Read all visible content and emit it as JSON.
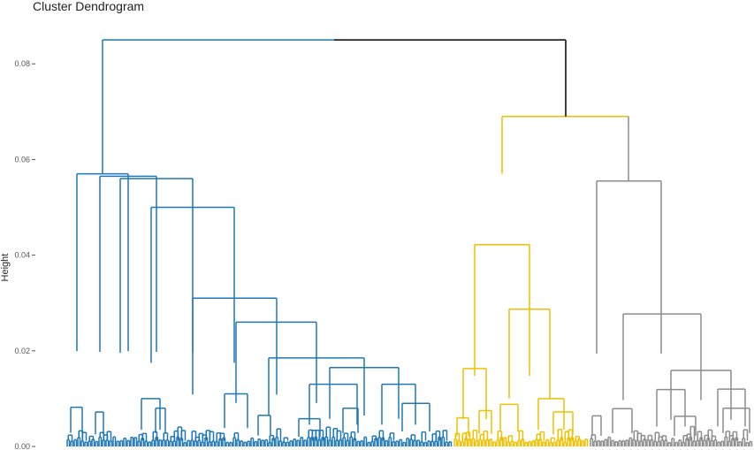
{
  "chart_data": {
    "type": "dendrogram",
    "title": "Cluster Dendrogram",
    "xlabel": "",
    "ylabel": "Height",
    "ylim": [
      0,
      0.085
    ],
    "y_ticks": [
      {
        "value": 0.0,
        "label": "0.00"
      },
      {
        "value": 0.02,
        "label": "0.02"
      },
      {
        "value": 0.04,
        "label": "0.04"
      },
      {
        "value": 0.06,
        "label": "0.06"
      },
      {
        "value": 0.08,
        "label": "0.08"
      }
    ],
    "colors": {
      "cluster1": "#1f77b4",
      "cluster2": "#f0c000",
      "cluster3": "#8c8c8c",
      "root": "#000000",
      "axis": "#555555"
    },
    "clusters": [
      {
        "color": "#1f77b4",
        "leaf_range": [
          76,
          511
        ],
        "merges": [
          {
            "x1": 87,
            "x2": 145,
            "h": 0.057
          },
          {
            "x1": 113,
            "x2": 177,
            "h": 0.0565
          },
          {
            "x1": 136,
            "x2": 218,
            "h": 0.056
          },
          {
            "x1": 171,
            "x2": 265,
            "h": 0.05
          },
          {
            "x1": 218,
            "x2": 313,
            "h": 0.031
          },
          {
            "x1": 267,
            "x2": 358,
            "h": 0.026
          },
          {
            "x1": 304,
            "x2": 412,
            "h": 0.0185
          },
          {
            "x1": 373,
            "x2": 451,
            "h": 0.0165
          },
          {
            "x1": 350,
            "x2": 404,
            "h": 0.013
          },
          {
            "x1": 432,
            "x2": 470,
            "h": 0.013
          },
          {
            "x1": 455,
            "x2": 486,
            "h": 0.009
          },
          {
            "x1": 254,
            "x2": 280,
            "h": 0.011
          },
          {
            "x1": 160,
            "x2": 181,
            "h": 0.01
          },
          {
            "x1": 80,
            "x2": 93,
            "h": 0.0082
          },
          {
            "x1": 108,
            "x2": 117,
            "h": 0.0072
          },
          {
            "x1": 176,
            "x2": 187,
            "h": 0.008
          },
          {
            "x1": 292,
            "x2": 306,
            "h": 0.0065
          },
          {
            "x1": 338,
            "x2": 362,
            "h": 0.0058
          },
          {
            "x1": 388,
            "x2": 405,
            "h": 0.008
          }
        ]
      },
      {
        "color": "#f0c000",
        "leaf_range": [
          514,
          665
        ],
        "merges": [
          {
            "x1": 537,
            "x2": 599,
            "h": 0.0422
          },
          {
            "x1": 576,
            "x2": 622,
            "h": 0.0287
          },
          {
            "x1": 524,
            "x2": 550,
            "h": 0.0163
          },
          {
            "x1": 566,
            "x2": 586,
            "h": 0.0088
          },
          {
            "x1": 609,
            "x2": 638,
            "h": 0.01
          },
          {
            "x1": 626,
            "x2": 648,
            "h": 0.0072
          },
          {
            "x1": 542,
            "x2": 556,
            "h": 0.0075
          },
          {
            "x1": 517,
            "x2": 530,
            "h": 0.006
          }
        ]
      },
      {
        "color": "#8c8c8c",
        "leaf_range": [
          668,
          852
        ],
        "merges": [
          {
            "x1": 675,
            "x2": 748,
            "h": 0.0555
          },
          {
            "x1": 705,
            "x2": 793,
            "h": 0.0277
          },
          {
            "x1": 759,
            "x2": 827,
            "h": 0.0159
          },
          {
            "x1": 743,
            "x2": 775,
            "h": 0.0119
          },
          {
            "x1": 812,
            "x2": 843,
            "h": 0.012
          },
          {
            "x1": 693,
            "x2": 715,
            "h": 0.0079
          },
          {
            "x1": 763,
            "x2": 787,
            "h": 0.0063
          },
          {
            "x1": 818,
            "x2": 848,
            "h": 0.008
          },
          {
            "x1": 670,
            "x2": 680,
            "h": 0.0064
          }
        ]
      }
    ],
    "top_merges": [
      {
        "x1": 568,
        "x2": 711,
        "h": 0.069,
        "color": "#f0c000",
        "left_color": "#f0c000",
        "right_color": "#8c8c8c"
      },
      {
        "x1": 116,
        "x2": 640,
        "h": 0.085,
        "color": "#000000",
        "left_color": "#1f77b4",
        "right_color": "#000000",
        "split_color_at": 378
      }
    ]
  }
}
